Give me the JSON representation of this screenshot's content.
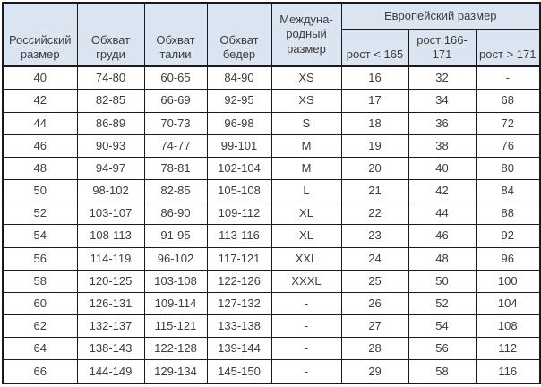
{
  "header": {
    "russian_size": "Российский\nразмер",
    "chest": "Обхват\nгруди",
    "waist": "Обхват\nталии",
    "hips": "Обхват\nбедер",
    "international_size": "Междуна-\nродный\nразмер",
    "european_size": "Европейский размер",
    "height_lt_165": "рост < 165",
    "height_166_171": "рост 166-171",
    "height_gt_171": "рост > 171"
  },
  "rows": [
    [
      "40",
      "74-80",
      "60-65",
      "84-90",
      "XS",
      "16",
      "32",
      "-"
    ],
    [
      "42",
      "82-85",
      "66-69",
      "92-95",
      "XS",
      "17",
      "34",
      "68"
    ],
    [
      "44",
      "86-89",
      "70-73",
      "96-98",
      "S",
      "18",
      "36",
      "72"
    ],
    [
      "46",
      "90-93",
      "74-77",
      "99-101",
      "M",
      "19",
      "38",
      "76"
    ],
    [
      "48",
      "94-97",
      "78-81",
      "102-104",
      "M",
      "20",
      "40",
      "80"
    ],
    [
      "50",
      "98-102",
      "82-85",
      "105-108",
      "L",
      "21",
      "42",
      "84"
    ],
    [
      "52",
      "103-107",
      "86-90",
      "109-112",
      "XL",
      "22",
      "44",
      "88"
    ],
    [
      "54",
      "108-113",
      "91-95",
      "113-116",
      "XL",
      "23",
      "46",
      "92"
    ],
    [
      "56",
      "114-119",
      "96-102",
      "117-121",
      "XXL",
      "24",
      "48",
      "96"
    ],
    [
      "58",
      "120-125",
      "103-108",
      "122-126",
      "XXXL",
      "25",
      "50",
      "100"
    ],
    [
      "60",
      "126-131",
      "109-114",
      "127-132",
      "-",
      "26",
      "52",
      "104"
    ],
    [
      "62",
      "132-137",
      "115-121",
      "133-138",
      "-",
      "27",
      "54",
      "108"
    ],
    [
      "64",
      "138-143",
      "122-128",
      "139-144",
      "-",
      "28",
      "56",
      "112"
    ],
    [
      "66",
      "144-149",
      "129-134",
      "145-150",
      "-",
      "29",
      "58",
      "116"
    ]
  ],
  "colors": {
    "header_bg": "#dbe5f1",
    "border": "#1a1a1a",
    "text": "#3c3c3c",
    "background": "#ffffff"
  }
}
